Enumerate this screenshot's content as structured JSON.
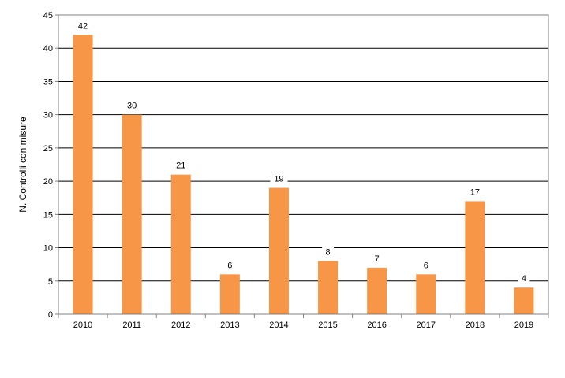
{
  "chart_data": {
    "type": "bar",
    "categories": [
      "2010",
      "2011",
      "2012",
      "2013",
      "2014",
      "2015",
      "2016",
      "2017",
      "2018",
      "2019"
    ],
    "values": [
      42,
      30,
      21,
      6,
      19,
      8,
      7,
      6,
      17,
      4
    ],
    "xlabel": "",
    "ylabel": "N. Controlli con misure",
    "ylim": [
      0,
      45
    ],
    "yticks": [
      0,
      5,
      10,
      15,
      20,
      25,
      30,
      35,
      40,
      45
    ],
    "grid": true,
    "legend": "none",
    "data_labels": true,
    "bar_color": "#F79646"
  }
}
